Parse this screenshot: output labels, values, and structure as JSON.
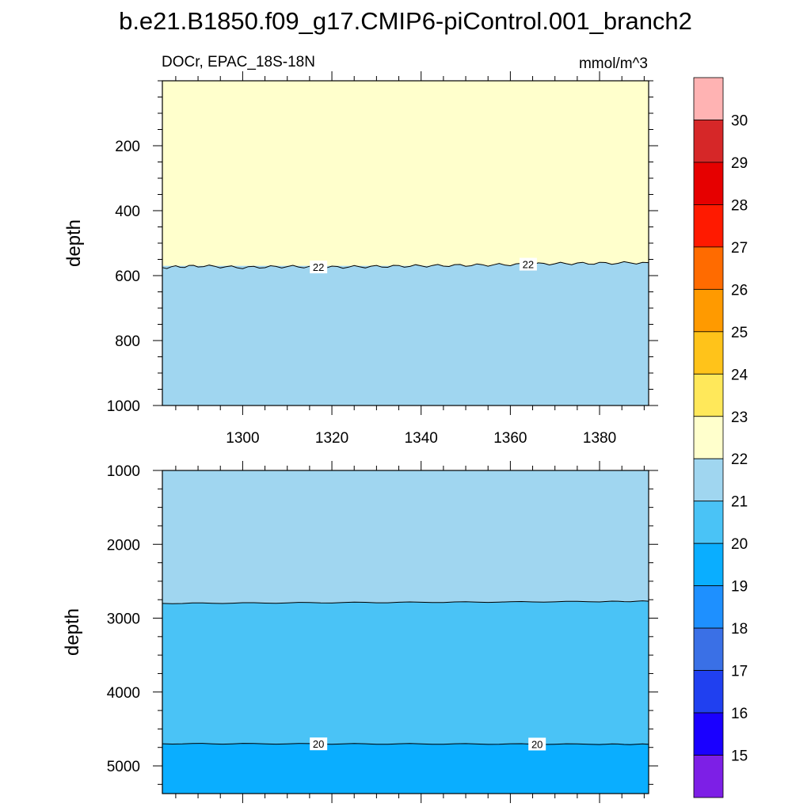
{
  "chart_data": [
    {
      "type": "heatmap",
      "panel": "top",
      "title": "b.e21.B1850.f09_g17.CMIP6-piControl.001_branch2",
      "left_string": "DOCr, EPAC_18S-18N",
      "right_string": "mmol/m^3",
      "xlabel": "",
      "ylabel": "depth",
      "xlim": [
        1282,
        1391
      ],
      "ylim": [
        1000,
        0
      ],
      "x_ticks": [
        1300,
        1320,
        1340,
        1360,
        1380
      ],
      "x_tick_labels": [
        "1300",
        "1320",
        "1340",
        "1360",
        "1380"
      ],
      "y_ticks": [
        200,
        400,
        600,
        800,
        1000
      ],
      "y_tick_labels": [
        "200",
        "400",
        "600",
        "800",
        "1000"
      ],
      "regions": [
        {
          "range": "22-23",
          "from_depth": 0,
          "to_depth": 570,
          "color": "#ffffcc"
        },
        {
          "range": "21-22",
          "from_depth": 570,
          "to_depth": 1000,
          "color": "#a0d6f0"
        }
      ],
      "contours": [
        {
          "level": "22",
          "label_x": [
            1317,
            1364
          ],
          "x": [
            1282,
            1290,
            1300,
            1310,
            1320,
            1330,
            1340,
            1350,
            1360,
            1370,
            1380,
            1391
          ],
          "depth": [
            575,
            570,
            575,
            572,
            574,
            572,
            570,
            568,
            566,
            563,
            562,
            560
          ]
        }
      ]
    },
    {
      "type": "heatmap",
      "panel": "bottom",
      "xlabel": "",
      "ylabel": "depth",
      "xlim": [
        1282,
        1391
      ],
      "ylim": [
        5375,
        1000
      ],
      "y_ticks": [
        1000,
        2000,
        3000,
        4000,
        5000
      ],
      "y_tick_labels": [
        "1000",
        "2000",
        "3000",
        "4000",
        "5000"
      ],
      "regions": [
        {
          "range": "21-22",
          "from_depth": 1000,
          "to_depth": 2800,
          "color": "#a0d6f0"
        },
        {
          "range": "20-21",
          "from_depth": 2800,
          "to_depth": 4700,
          "color": "#4ac3f6"
        },
        {
          "range": "19-20",
          "from_depth": 4700,
          "to_depth": 5375,
          "color": "#0aaeff"
        }
      ],
      "contours": [
        {
          "level": "21",
          "label_x": [],
          "x": [
            1282,
            1300,
            1320,
            1340,
            1360,
            1380,
            1391
          ],
          "depth": [
            2800,
            2795,
            2790,
            2785,
            2780,
            2775,
            2770
          ]
        },
        {
          "level": "20",
          "label_x": [
            1317,
            1366
          ],
          "x": [
            1282,
            1300,
            1320,
            1340,
            1360,
            1380,
            1391
          ],
          "depth": [
            4700,
            4700,
            4702,
            4703,
            4704,
            4706,
            4708
          ]
        }
      ]
    }
  ],
  "colorbar": {
    "labels": [
      "30",
      "29",
      "28",
      "27",
      "26",
      "25",
      "24",
      "23",
      "22",
      "21",
      "20",
      "19",
      "18",
      "17",
      "16",
      "15"
    ],
    "colors": [
      "#ffb3b3",
      "#d62728",
      "#e60000",
      "#ff1a00",
      "#ff6b00",
      "#ff9a00",
      "#ffc31a",
      "#ffe85a",
      "#ffffcc",
      "#a0d6f0",
      "#4ac3f6",
      "#0aaeff",
      "#1e90ff",
      "#3a70e6",
      "#2040f0",
      "#1a00ff",
      "#7d1fe6"
    ]
  }
}
